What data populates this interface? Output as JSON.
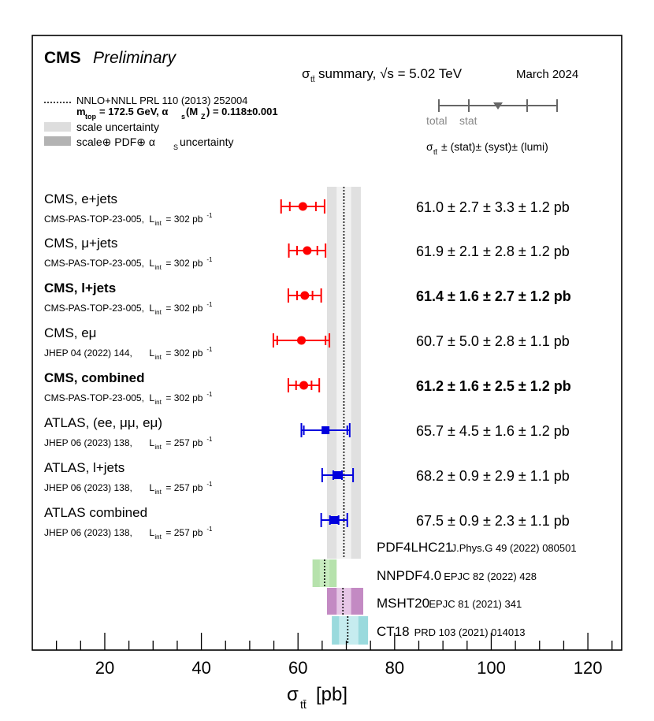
{
  "header": {
    "experiment": "CMS",
    "status": "Preliminary",
    "summary_prefix": "σ",
    "summary_sub": "tt̄",
    "summary_text": " summary, √s = 5.02 TeV",
    "date": "March 2024"
  },
  "legend": {
    "theory_line": "NNLO+NNLL  PRL 110 (2013) 252004",
    "theory_params": "m_top = 172.5 GeV, αs(MZ) = 0.118±0.001",
    "mtop_main": "m",
    "mtop_sub": "top",
    "mtop_rest": " = 172.5 GeV, α",
    "alpha_sub": "s",
    "alpha_rest": "(M",
    "mz_sub": "Z",
    "alpha_value": ") = 0.118±0.001",
    "scale": "scale uncertainty",
    "scale_pdf_prefix": "scale⊕ PDF⊕ α",
    "scale_pdf_sub": "S",
    "scale_pdf_suffix": " uncertainty",
    "key_total": "total",
    "key_stat": "stat",
    "format_prefix": "σ",
    "format_sub": "tt̄",
    "format_suffix": "± (stat)± (syst)± (lumi)"
  },
  "chart_data": {
    "type": "scatter",
    "xlabel": "σtt̄ [pb]",
    "xlim": [
      5,
      127
    ],
    "xticks": [
      20,
      40,
      60,
      80,
      100,
      120
    ],
    "theory": {
      "central": 69.5,
      "scale_band": [
        68.0,
        71.0
      ],
      "total_band": [
        66.0,
        73.0
      ]
    },
    "measurements": [
      {
        "label": "CMS, e+jets",
        "ref": "CMS-PAS-TOP-23-005,",
        "lumi": "302 pb",
        "value": 61.0,
        "stat_err": 2.7,
        "total_err": 4.5,
        "display": "61.0 ± 2.7 ± 3.3 ± 1.2 pb",
        "bold": false,
        "color": "#ff0000",
        "marker": "circle"
      },
      {
        "label": "CMS, μ+jets",
        "ref": "CMS-PAS-TOP-23-005,",
        "lumi": "302 pb",
        "value": 61.9,
        "stat_err": 2.1,
        "total_err": 3.8,
        "display": "61.9 ± 2.1 ± 2.8 ± 1.2 pb",
        "bold": false,
        "color": "#ff0000",
        "marker": "circle"
      },
      {
        "label": "CMS, l+jets",
        "ref": "CMS-PAS-TOP-23-005,",
        "lumi": "302 pb",
        "value": 61.4,
        "stat_err": 1.6,
        "total_err": 3.4,
        "display": "61.4 ± 1.6 ± 2.7 ± 1.2 pb",
        "bold": true,
        "color": "#ff0000",
        "marker": "circle"
      },
      {
        "label": "CMS, eμ",
        "ref": "JHEP 04 (2022) 144,",
        "lumi": "302 pb",
        "value": 60.7,
        "stat_err": 5.0,
        "total_err": 5.8,
        "display": "60.7 ± 5.0 ± 2.8 ± 1.1 pb",
        "bold": false,
        "color": "#ff0000",
        "marker": "circle"
      },
      {
        "label": "CMS, combined",
        "ref": "CMS-PAS-TOP-23-005,",
        "lumi": "302 pb",
        "value": 61.2,
        "stat_err": 1.6,
        "total_err": 3.2,
        "display": "61.2 ± 1.6 ± 2.5 ± 1.2 pb",
        "bold": true,
        "color": "#ff0000",
        "marker": "circle"
      },
      {
        "label": "ATLAS, (ee, μμ, eμ)",
        "ref": "JHEP 06 (2023) 138,",
        "lumi": "257 pb",
        "value": 65.7,
        "stat_err": 4.5,
        "total_err": 5.0,
        "display": "65.7 ± 4.5 ± 1.6 ± 1.2 pb",
        "bold": false,
        "color": "#0000dd",
        "marker": "square"
      },
      {
        "label": "ATLAS, l+jets",
        "ref": "JHEP 06 (2023) 138,",
        "lumi": "257 pb",
        "value": 68.2,
        "stat_err": 0.9,
        "total_err": 3.2,
        "display": "68.2 ± 0.9 ± 2.9 ± 1.1 pb",
        "bold": false,
        "color": "#0000dd",
        "marker": "square"
      },
      {
        "label": "ATLAS combined",
        "ref": "JHEP 06 (2023) 138,",
        "lumi": "257 pb",
        "value": 67.5,
        "stat_err": 0.9,
        "total_err": 2.7,
        "display": "67.5 ± 0.9 ± 2.3 ± 1.1 pb",
        "bold": false,
        "color": "#0000dd",
        "marker": "square"
      }
    ],
    "pdf_sets": [
      {
        "name": "PDF4LHC21",
        "ref": "J.Phys.G 49 (2022) 080501",
        "central": 69.5,
        "inner": [
          68.0,
          71.0
        ],
        "outer": [
          66.0,
          73.0
        ],
        "inner_color": "#d8d8d8",
        "outer_color": "#e8e8e8"
      },
      {
        "name": "NNPDF4.0",
        "ref": "EPJC 82 (2022) 428",
        "central": 65.5,
        "inner": [
          64.5,
          66.5
        ],
        "outer": [
          63.0,
          68.0
        ],
        "inner_color": "#c8ecc0",
        "outer_color": "#b6e2ac"
      },
      {
        "name": "MSHT20",
        "ref": "EPJC 81 (2021) 341",
        "central": 69.3,
        "inner": [
          68.0,
          71.0
        ],
        "outer": [
          66.0,
          73.5
        ],
        "inner_color": "#e6c6e6",
        "outer_color": "#c38ac3"
      },
      {
        "name": "CT18",
        "ref": "PRD 103 (2021) 014013",
        "central": 70.3,
        "inner": [
          68.5,
          72.5
        ],
        "outer": [
          67.0,
          74.5
        ],
        "inner_color": "#c6ecef",
        "outer_color": "#9adadd"
      }
    ]
  }
}
